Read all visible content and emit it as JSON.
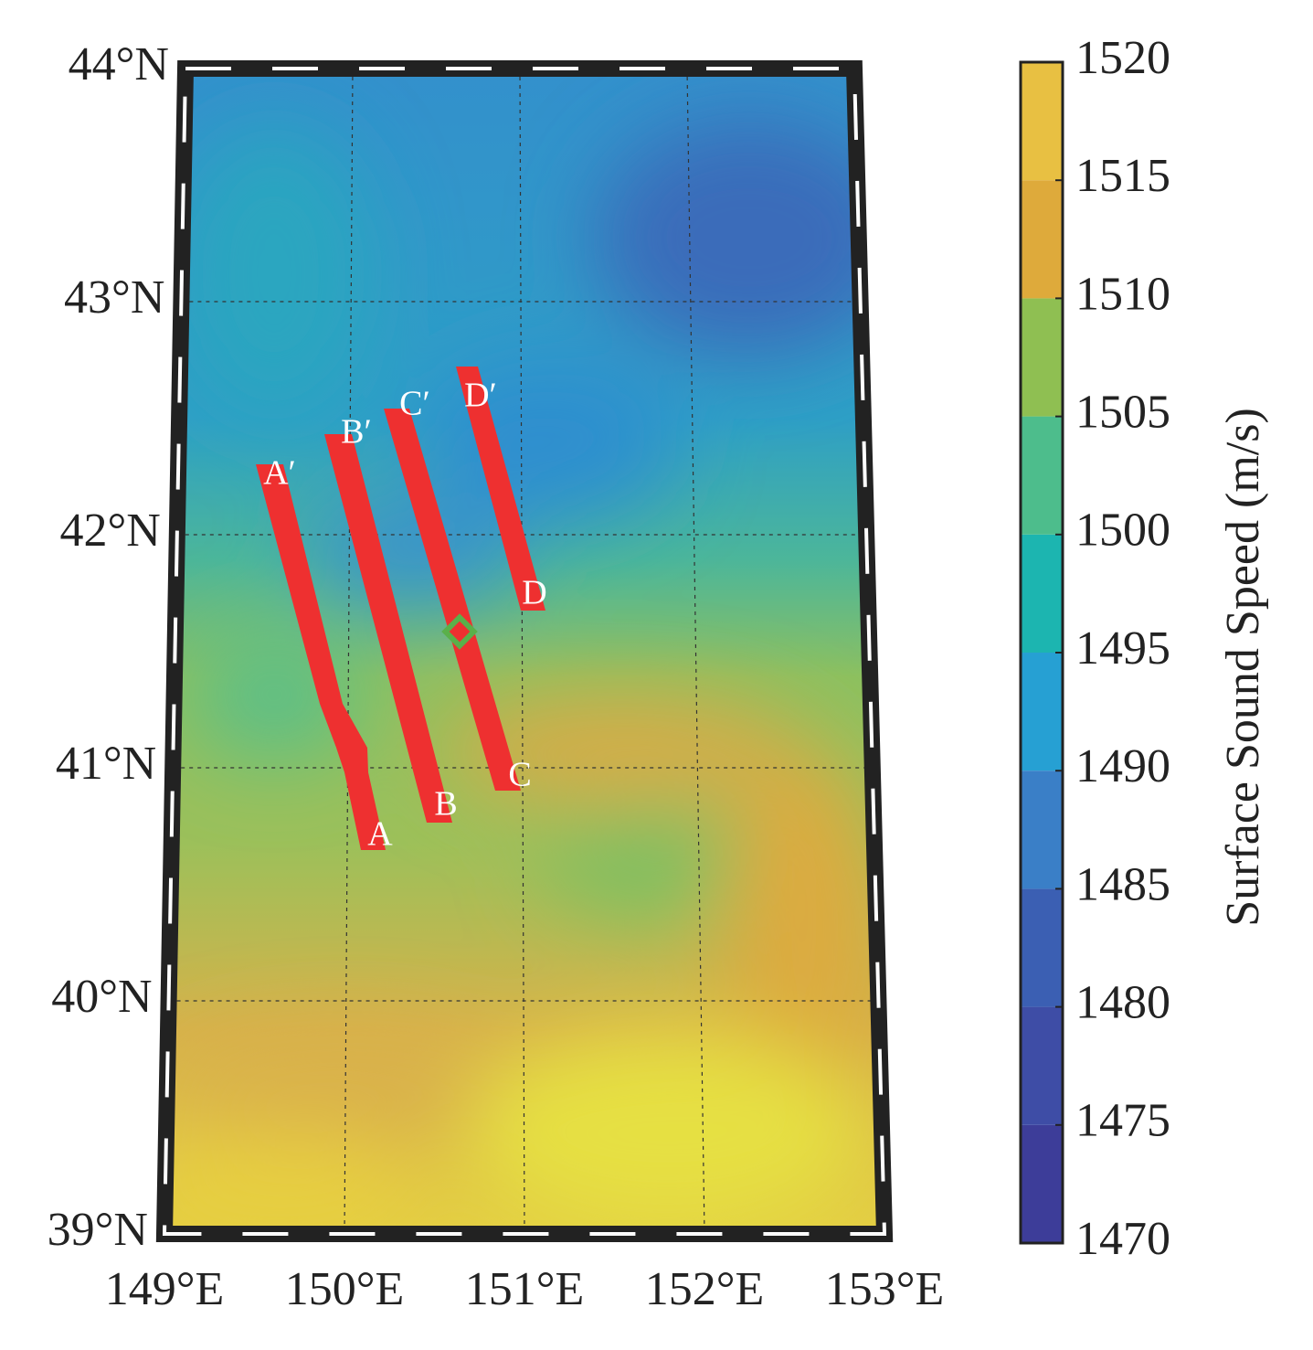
{
  "map": {
    "lat_ticks": [
      {
        "value": 39,
        "label": "39°N"
      },
      {
        "value": 40,
        "label": "40°N"
      },
      {
        "value": 41,
        "label": "41°N"
      },
      {
        "value": 42,
        "label": "42°N"
      },
      {
        "value": 43,
        "label": "43°N"
      },
      {
        "value": 44,
        "label": "44°N"
      }
    ],
    "lon_ticks": [
      {
        "value": 149,
        "label": "149°E"
      },
      {
        "value": 150,
        "label": "150°E"
      },
      {
        "value": 151,
        "label": "151°E"
      },
      {
        "value": 152,
        "label": "152°E"
      },
      {
        "value": 153,
        "label": "153°E"
      }
    ],
    "tracks": [
      {
        "start": "A",
        "end": "A′"
      },
      {
        "start": "B",
        "end": "B′"
      },
      {
        "start": "C",
        "end": "C′"
      },
      {
        "start": "D",
        "end": "D′"
      }
    ]
  },
  "colorbar": {
    "label": "Surface Sound Speed (m/s)",
    "lim": [
      1470,
      1520
    ],
    "ticks": [
      1470,
      1475,
      1480,
      1485,
      1490,
      1495,
      1500,
      1505,
      1510,
      1515,
      1520
    ],
    "colors": [
      "#3d3d99",
      "#3e4da6",
      "#3b5fb3",
      "#3a7fc7",
      "#26a0d3",
      "#1cb5b0",
      "#4dbd8c",
      "#8fbf52",
      "#deaa3b",
      "#e8c042"
    ]
  }
}
